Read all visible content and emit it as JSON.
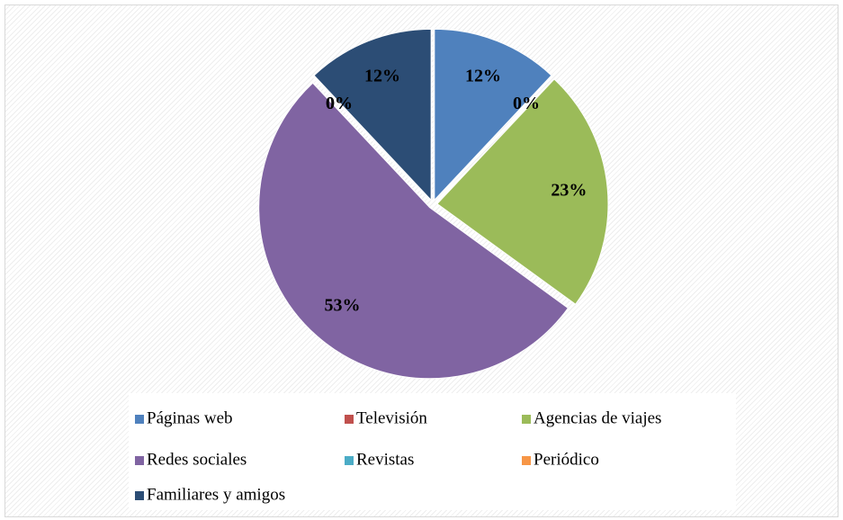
{
  "chart_data": {
    "type": "pie",
    "categories": [
      "Páginas web",
      "Televisión",
      "Agencias de viajes",
      "Redes sociales",
      "Revistas",
      "Periódico",
      "Familiares y amigos"
    ],
    "values": [
      12,
      0,
      23,
      53,
      0,
      0,
      12
    ],
    "value_labels": [
      "12%",
      "0%",
      "23%",
      "53%",
      "0%",
      "0%",
      "12%"
    ],
    "colors": [
      "#4f81bd",
      "#c0504d",
      "#9bbb59",
      "#8064a2",
      "#4bacc6",
      "#f79646",
      "#2c4d75"
    ],
    "legend": "bottom"
  }
}
